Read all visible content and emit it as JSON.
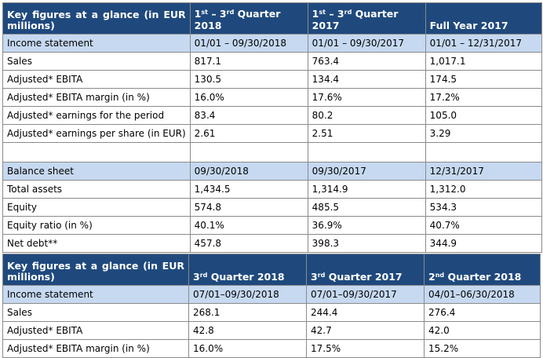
{
  "table1": {
    "title": "Key figures at a glance (in EUR millions)",
    "headers": [
      {
        "a": "1",
        "sa": "st",
        "m": " – 3",
        "sb": "rd",
        "b": " Quarter 2018"
      },
      {
        "a": "1",
        "sa": "st",
        "m": " – 3",
        "sb": "rd",
        "b": " Quarter 2017"
      },
      {
        "a": "Full Year 2017",
        "sa": "",
        "m": "",
        "sb": "",
        "b": ""
      }
    ],
    "rows": [
      [
        "Income statement",
        "01/01 – 09/30/2018",
        "01/01 – 09/30/2017",
        "01/01 – 12/31/2017"
      ],
      [
        "Sales",
        "817.1",
        "763.4",
        "1,017.1"
      ],
      [
        "Adjusted* EBITA",
        "130.5",
        "134.4",
        "174.5"
      ],
      [
        "Adjusted* EBITA margin (in %)",
        "16.0%",
        "17.6%",
        "17.2%"
      ],
      [
        "Adjusted* earnings for the period",
        "83.4",
        "80.2",
        "105.0"
      ],
      [
        "Adjusted* earnings per share (in EUR)",
        "2.61",
        "2.51",
        "3.29"
      ],
      [
        "",
        "",
        "",
        ""
      ],
      [
        "Balance sheet",
        "09/30/2018",
        "09/30/2017",
        "12/31/2017"
      ],
      [
        "Total assets",
        "1,434.5",
        "1,314.9",
        "1,312.0"
      ],
      [
        "Equity",
        "574.8",
        "485.5",
        "534.3"
      ],
      [
        "Equity ratio (in %)",
        "40.1%",
        "36.9%",
        "40.7%"
      ],
      [
        "Net debt**",
        "457.8",
        "398.3",
        "344.9"
      ]
    ]
  },
  "table2": {
    "title": "Key figures at a glance (in EUR millions)",
    "headers": [
      {
        "a": "3",
        "sa": "rd",
        "b": " Quarter 2018"
      },
      {
        "a": "3",
        "sa": "rd",
        "b": " Quarter 2017"
      },
      {
        "a": "2",
        "sa": "nd",
        "b": " Quarter 2018"
      }
    ],
    "rows": [
      [
        "Income statement",
        "07/01–09/30/2018",
        "07/01–09/30/2017",
        "04/01–06/30/2018"
      ],
      [
        "Sales",
        "268.1",
        "244.4",
        "276.4"
      ],
      [
        "Adjusted* EBITA",
        "42.8",
        "42.7",
        "42.0"
      ],
      [
        "Adjusted* EBITA margin (in %)",
        "16.0%",
        "17.5%",
        "15.2%"
      ]
    ]
  }
}
